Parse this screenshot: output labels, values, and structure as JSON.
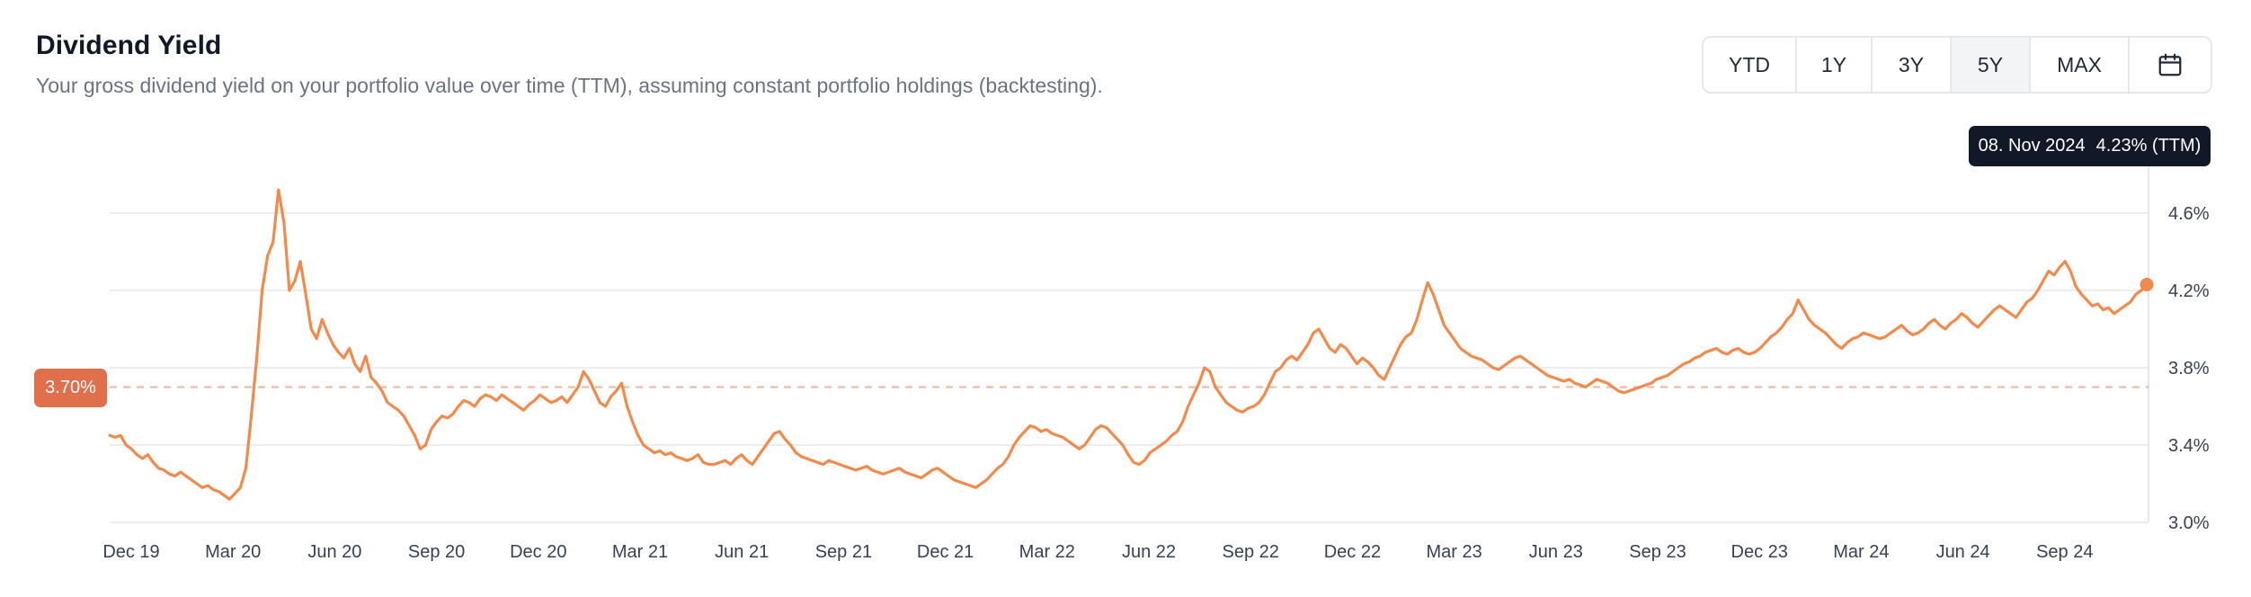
{
  "header": {
    "title": "Dividend Yield",
    "subtitle": "Your gross dividend yield on your portfolio value over time (TTM), assuming constant portfolio holdings (backtesting)."
  },
  "range_buttons": [
    {
      "label": "YTD",
      "active": false
    },
    {
      "label": "1Y",
      "active": false
    },
    {
      "label": "3Y",
      "active": false
    },
    {
      "label": "5Y",
      "active": true
    },
    {
      "label": "MAX",
      "active": false
    }
  ],
  "calendar_icon": "calendar-icon",
  "tooltip": {
    "date": "08. Nov 2024",
    "value": "4.23% (TTM)"
  },
  "reference": {
    "label": "3.70%",
    "value": 3.7
  },
  "colors": {
    "line": "#f28a4c",
    "reference": "#f5b39a",
    "badge": "#e0704c",
    "tooltip_bg": "#111827",
    "grid": "#e5e7eb"
  },
  "chart_data": {
    "type": "line",
    "title": "Dividend Yield",
    "y_unit": "%",
    "ylim": [
      3.0,
      4.8
    ],
    "yticks": [
      "3.0%",
      "3.4%",
      "3.8%",
      "4.2%",
      "4.6%"
    ],
    "ytick_values": [
      3.0,
      3.4,
      3.8,
      4.2,
      4.6
    ],
    "xticks": [
      "Dec 19",
      "Mar 20",
      "Jun 20",
      "Sep 20",
      "Dec 20",
      "Mar 21",
      "Jun 21",
      "Sep 21",
      "Dec 21",
      "Mar 22",
      "Jun 22",
      "Sep 22",
      "Dec 22",
      "Mar 23",
      "Jun 23",
      "Sep 23",
      "Dec 23",
      "Mar 24",
      "Jun 24",
      "Sep 24"
    ],
    "x_range": [
      "Nov 19",
      "Nov 24"
    ],
    "grid": true,
    "reference_line": 3.7,
    "series": [
      {
        "values": [
          3.45,
          3.44,
          3.45,
          3.4,
          3.38,
          3.35,
          3.33,
          3.35,
          3.31,
          3.28,
          3.27,
          3.25,
          3.24,
          3.26,
          3.24,
          3.22,
          3.2,
          3.18,
          3.19,
          3.17,
          3.16,
          3.14,
          3.12,
          3.15,
          3.18,
          3.28,
          3.55,
          3.85,
          4.2,
          4.38,
          4.45,
          4.72,
          4.55,
          4.2,
          4.25,
          4.35,
          4.18,
          4.0,
          3.95,
          4.05,
          3.98,
          3.92,
          3.88,
          3.85,
          3.9,
          3.82,
          3.78,
          3.86,
          3.75,
          3.72,
          3.68,
          3.62,
          3.6,
          3.58,
          3.55,
          3.5,
          3.45,
          3.38,
          3.4,
          3.48,
          3.52,
          3.55,
          3.54,
          3.56,
          3.6,
          3.63,
          3.62,
          3.6,
          3.64,
          3.66,
          3.65,
          3.63,
          3.66,
          3.64,
          3.62,
          3.6,
          3.58,
          3.61,
          3.63,
          3.66,
          3.64,
          3.62,
          3.63,
          3.65,
          3.62,
          3.66,
          3.7,
          3.78,
          3.74,
          3.68,
          3.62,
          3.6,
          3.65,
          3.68,
          3.72,
          3.6,
          3.52,
          3.45,
          3.4,
          3.38,
          3.36,
          3.37,
          3.35,
          3.36,
          3.34,
          3.33,
          3.32,
          3.33,
          3.35,
          3.31,
          3.3,
          3.3,
          3.31,
          3.32,
          3.3,
          3.33,
          3.35,
          3.32,
          3.3,
          3.34,
          3.38,
          3.42,
          3.46,
          3.47,
          3.43,
          3.4,
          3.36,
          3.34,
          3.33,
          3.32,
          3.31,
          3.3,
          3.32,
          3.31,
          3.3,
          3.29,
          3.28,
          3.27,
          3.28,
          3.29,
          3.27,
          3.26,
          3.25,
          3.26,
          3.27,
          3.28,
          3.26,
          3.25,
          3.24,
          3.23,
          3.25,
          3.27,
          3.28,
          3.26,
          3.24,
          3.22,
          3.21,
          3.2,
          3.19,
          3.18,
          3.2,
          3.22,
          3.25,
          3.28,
          3.3,
          3.34,
          3.4,
          3.44,
          3.47,
          3.5,
          3.49,
          3.47,
          3.48,
          3.46,
          3.45,
          3.44,
          3.42,
          3.4,
          3.38,
          3.4,
          3.44,
          3.48,
          3.5,
          3.49,
          3.46,
          3.43,
          3.4,
          3.35,
          3.31,
          3.3,
          3.32,
          3.36,
          3.38,
          3.4,
          3.42,
          3.45,
          3.47,
          3.52,
          3.6,
          3.66,
          3.72,
          3.8,
          3.78,
          3.7,
          3.66,
          3.62,
          3.6,
          3.58,
          3.57,
          3.59,
          3.6,
          3.62,
          3.66,
          3.72,
          3.78,
          3.8,
          3.84,
          3.86,
          3.84,
          3.88,
          3.92,
          3.98,
          4.0,
          3.95,
          3.9,
          3.88,
          3.92,
          3.9,
          3.86,
          3.82,
          3.85,
          3.83,
          3.8,
          3.76,
          3.74,
          3.8,
          3.86,
          3.92,
          3.96,
          3.98,
          4.05,
          4.15,
          4.24,
          4.18,
          4.1,
          4.02,
          3.98,
          3.94,
          3.9,
          3.88,
          3.86,
          3.85,
          3.84,
          3.82,
          3.8,
          3.79,
          3.81,
          3.83,
          3.85,
          3.86,
          3.84,
          3.82,
          3.8,
          3.78,
          3.76,
          3.75,
          3.74,
          3.73,
          3.74,
          3.72,
          3.71,
          3.7,
          3.72,
          3.74,
          3.73,
          3.72,
          3.7,
          3.68,
          3.67,
          3.68,
          3.69,
          3.7,
          3.71,
          3.72,
          3.74,
          3.75,
          3.76,
          3.78,
          3.8,
          3.82,
          3.83,
          3.85,
          3.86,
          3.88,
          3.89,
          3.9,
          3.88,
          3.87,
          3.89,
          3.9,
          3.88,
          3.87,
          3.88,
          3.9,
          3.93,
          3.96,
          3.98,
          4.01,
          4.05,
          4.08,
          4.15,
          4.1,
          4.05,
          4.02,
          4.0,
          3.98,
          3.95,
          3.92,
          3.9,
          3.93,
          3.95,
          3.96,
          3.98,
          3.97,
          3.96,
          3.95,
          3.96,
          3.98,
          4.0,
          4.02,
          3.99,
          3.97,
          3.98,
          4.0,
          4.03,
          4.05,
          4.02,
          4.0,
          4.03,
          4.05,
          4.08,
          4.06,
          4.03,
          4.01,
          4.04,
          4.07,
          4.1,
          4.12,
          4.1,
          4.08,
          4.06,
          4.1,
          4.14,
          4.16,
          4.2,
          4.25,
          4.3,
          4.28,
          4.32,
          4.35,
          4.3,
          4.22,
          4.18,
          4.15,
          4.12,
          4.13,
          4.1,
          4.11,
          4.08,
          4.1,
          4.12,
          4.14,
          4.18,
          4.2,
          4.23
        ]
      }
    ]
  }
}
